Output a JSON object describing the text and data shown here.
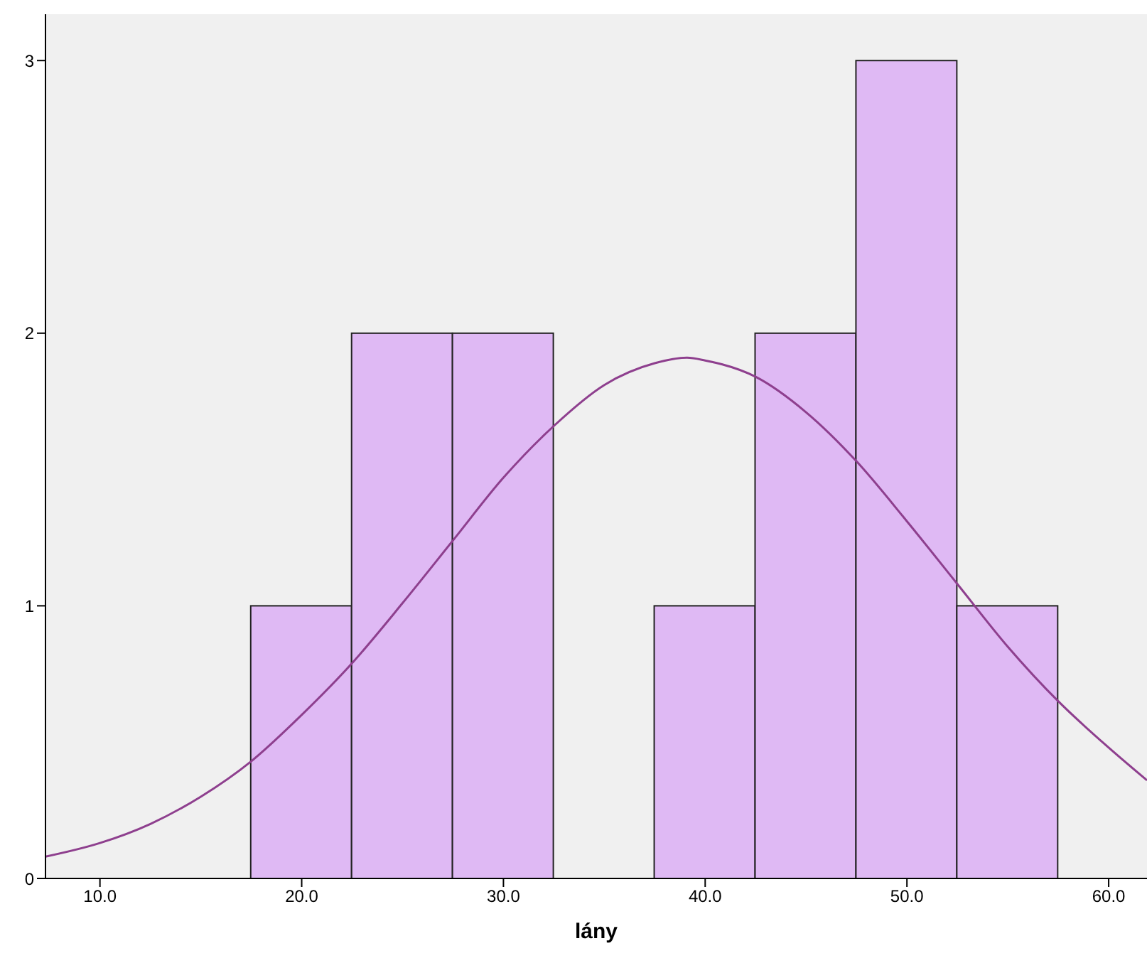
{
  "chart_data": {
    "type": "histogram",
    "xlabel": "lány",
    "bins": [
      17.5,
      22.5,
      27.5,
      32.5,
      37.5,
      42.5,
      47.5,
      52.5,
      57.5
    ],
    "values": [
      1,
      2,
      2,
      0,
      1,
      2,
      3,
      1
    ],
    "color": "#dfb9f4",
    "series": [
      {
        "type": "line",
        "color": "#8e3f8e",
        "x": [
          7.3,
          10,
          12.5,
          15,
          17.5,
          20,
          22.5,
          25,
          27.5,
          30,
          32.5,
          35,
          37.5,
          39.1,
          40,
          42.5,
          45,
          47.5,
          50,
          52.5,
          55,
          57.5,
          60,
          61.9
        ],
        "values": [
          0.08,
          0.13,
          0.2,
          0.3,
          0.43,
          0.6,
          0.79,
          1.01,
          1.24,
          1.47,
          1.66,
          1.81,
          1.89,
          1.91,
          1.9,
          1.84,
          1.71,
          1.53,
          1.31,
          1.08,
          0.85,
          0.65,
          0.48,
          0.36
        ]
      }
    ],
    "xlim": [
      7.3,
      61.9
    ],
    "xticks": [
      {
        "value": 10,
        "label": "10.0"
      },
      {
        "value": 20,
        "label": "20.0"
      },
      {
        "value": 30,
        "label": "30.0"
      },
      {
        "value": 40,
        "label": "40.0"
      },
      {
        "value": 50,
        "label": "50.0"
      },
      {
        "value": 60,
        "label": "60.0"
      }
    ],
    "ylim": [
      0,
      3.17
    ],
    "yticks": [
      0,
      1,
      2,
      3
    ],
    "grid": false
  }
}
